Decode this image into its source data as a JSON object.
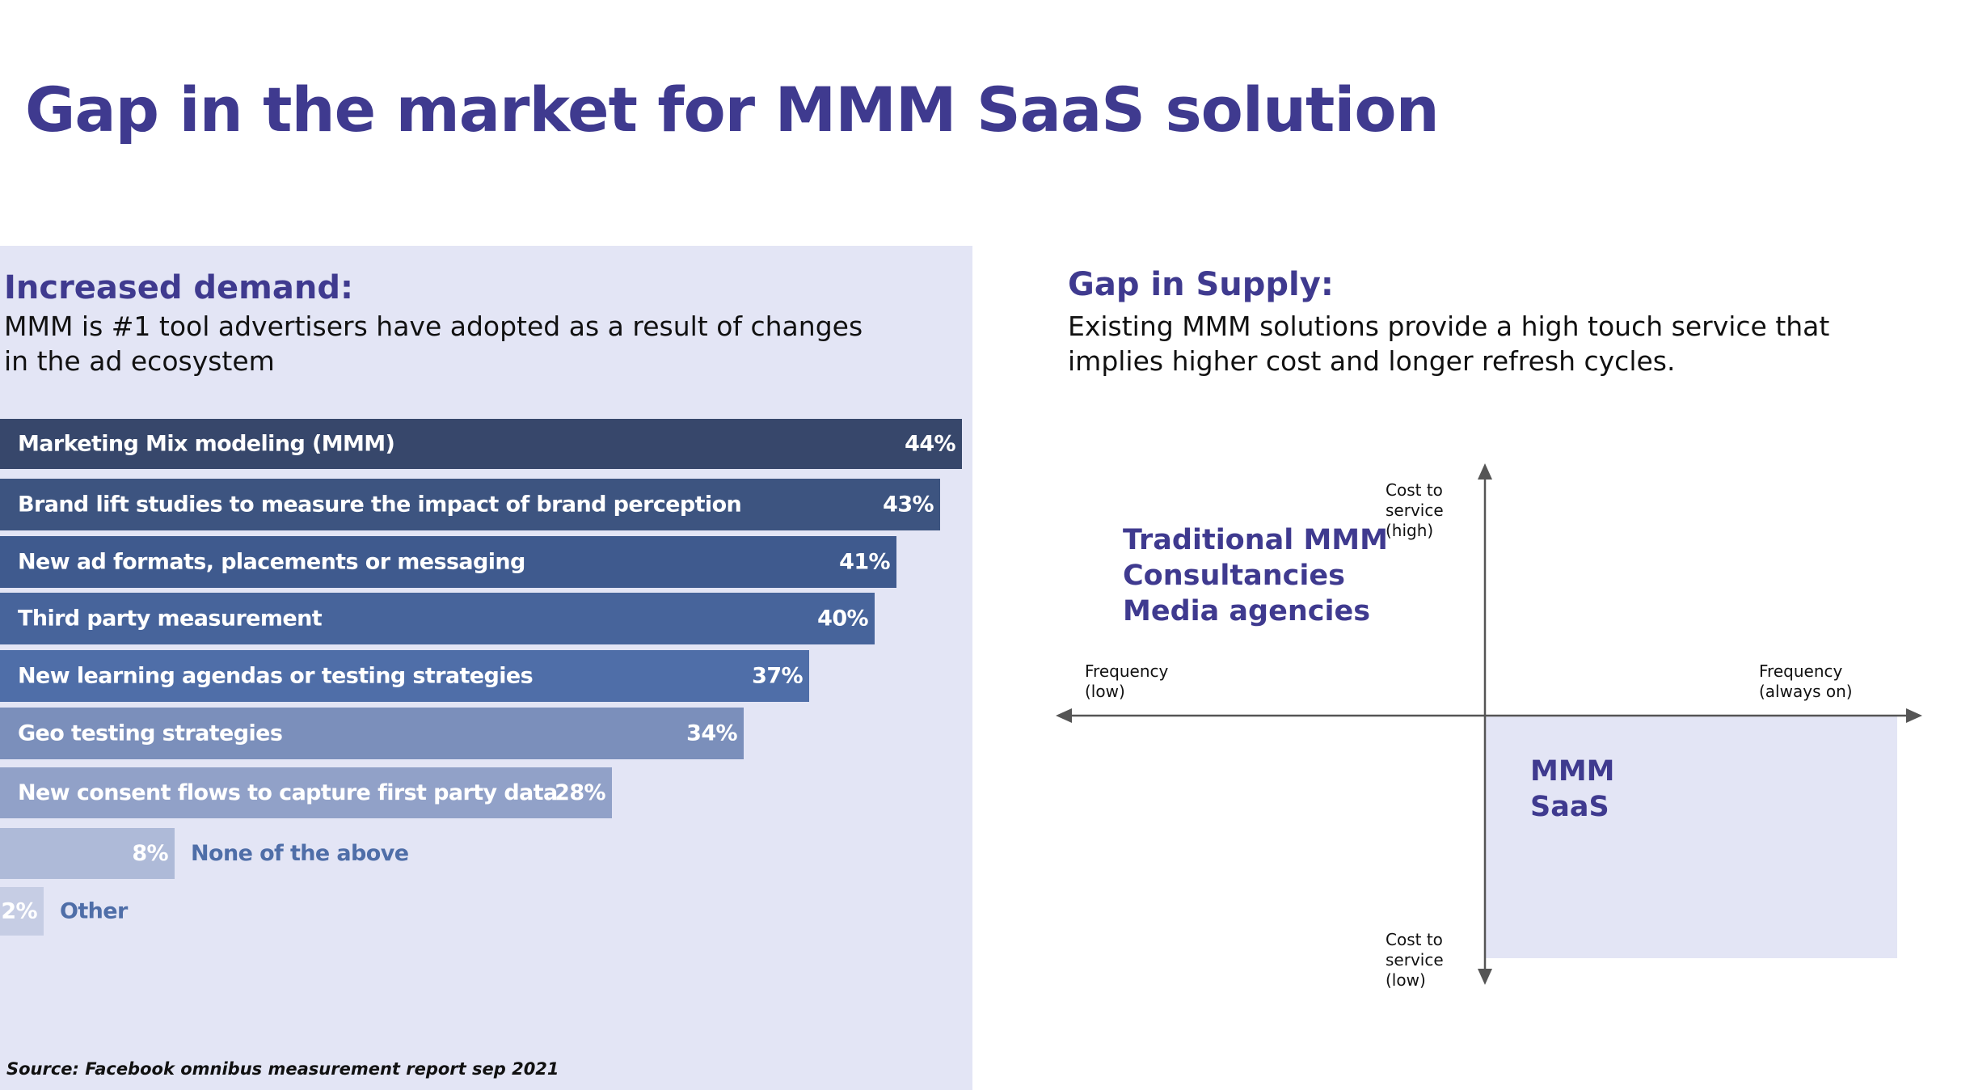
{
  "title": "Gap in the market for MMM SaaS solution",
  "demand": {
    "heading": "Increased demand:",
    "body": "MMM is #1 tool advertisers have adopted as a result of changes in the ad ecosystem"
  },
  "supply": {
    "heading": "Gap in Supply:",
    "body": "Existing MMM solutions provide a high touch service that implies higher cost and longer refresh cycles."
  },
  "source": "Source: Facebook omnibus measurement report sep 2021",
  "chart_data": [
    {
      "type": "bar",
      "orientation": "horizontal",
      "categories": [
        "Marketing Mix modeling (MMM)",
        "Brand lift studies to measure the impact of brand perception",
        "New ad formats, placements or messaging",
        "Third party measurement",
        "New learning agendas or testing strategies",
        "Geo testing strategies",
        "New consent flows to capture first party data",
        "None of the above",
        "Other"
      ],
      "values": [
        44,
        43,
        41,
        40,
        37,
        34,
        28,
        8,
        2
      ],
      "value_labels": [
        "44%",
        "43%",
        "41%",
        "40%",
        "37%",
        "34%",
        "28%",
        "8%",
        "2%"
      ],
      "bar_colors": [
        "#37476b",
        "#3d5480",
        "#3f5a8e",
        "#47649b",
        "#4f6ea8",
        "#7b8fbb",
        "#91a1c8",
        "#aebad8",
        "#c6cde4"
      ],
      "xlim": [
        0,
        44
      ]
    },
    {
      "type": "diagram",
      "x_axis": {
        "left_label": "Frequency\n(low)",
        "right_label": "Frequency\n(always on)"
      },
      "y_axis": {
        "top_label": "Cost to\nservice\n(high)",
        "bottom_label": "Cost to\nservice\n(low)"
      },
      "top_left_quadrant": [
        "Traditional MMM",
        "Consultancies",
        "Media agencies"
      ],
      "bottom_right_quadrant": [
        "MMM",
        "SaaS"
      ],
      "highlight_color": "#e3e5f5",
      "axis_color": "#555555"
    }
  ]
}
